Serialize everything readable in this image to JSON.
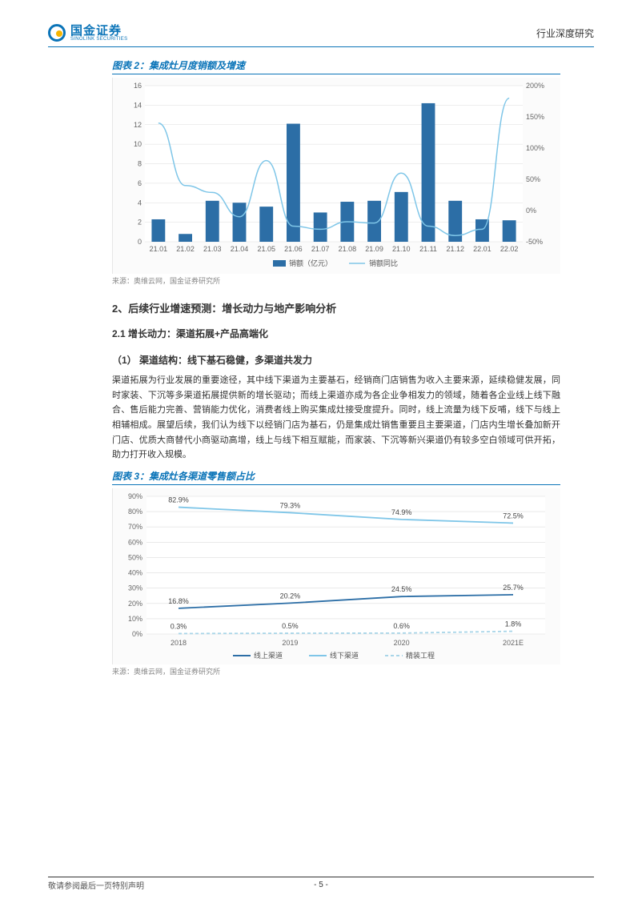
{
  "header": {
    "logo_cn": "国金证券",
    "logo_en": "SINOLINK SECURITIES",
    "right_text": "行业深度研究"
  },
  "fig2": {
    "title": "图表 2：集成灶月度销额及增速",
    "source": "来源：奥维云网，国金证券研究所",
    "type": "bar+line",
    "background_color": "#fbfbfb",
    "plot_bg": "#ffffff",
    "categories": [
      "21.01",
      "21.02",
      "21.03",
      "21.04",
      "21.05",
      "21.06",
      "21.07",
      "21.08",
      "21.09",
      "21.10",
      "21.11",
      "21.12",
      "22.01",
      "22.02"
    ],
    "bar_values": [
      2.3,
      0.8,
      4.2,
      4.0,
      3.6,
      12.1,
      3.0,
      4.1,
      4.2,
      5.1,
      14.2,
      4.2,
      2.3,
      2.2
    ],
    "line_values": [
      140,
      40,
      29,
      -10,
      80,
      -25,
      -30,
      -18,
      -20,
      60,
      -25,
      -40,
      -30,
      180
    ],
    "bar_color": "#2c6ea6",
    "line_color": "#7fc6e8",
    "grid_color": "#dcdcdc",
    "axis_font": 9,
    "y1_ticks": [
      0,
      2,
      4,
      6,
      8,
      10,
      12,
      14,
      16
    ],
    "y2_ticks": [
      -50,
      0,
      50,
      100,
      150,
      200
    ],
    "y2_tick_labels": [
      "-50%",
      "0%",
      "50%",
      "100%",
      "150%",
      "200%"
    ],
    "legend_bar": "销额（亿元）",
    "legend_line": "销额同比"
  },
  "section2_title": "2、后续行业增速预测：增长动力与地产影响分析",
  "sub21_title": "2.1 增长动力：渠道拓展+产品高端化",
  "para1_title": "（1）  渠道结构：线下基石稳健，多渠道共发力",
  "body1": "渠道拓展为行业发展的重要途径，其中线下渠道为主要基石，经销商门店销售为收入主要来源，延续稳健发展，同时家装、下沉等多渠道拓展提供新的增长驱动；而线上渠道亦成为各企业争相发力的领域，随着各企业线上线下融合、售后能力完善、营销能力优化，消费者线上购买集成灶接受度提升。同时，线上流量为线下反哺，线下与线上相辅相成。展望后续，我们认为线下以经销门店为基石，仍是集成灶销售重要且主要渠道，门店内生增长叠加新开门店、优质大商替代小商驱动高增，线上与线下相互赋能，而家装、下沉等新兴渠道仍有较多空白领域可供开拓，助力打开收入规模。",
  "fig3": {
    "title": "图表 3：集成灶各渠道零售额占比",
    "source": "来源：奥维云网，国金证券研究所",
    "type": "line",
    "background_color": "#fbfbfb",
    "plot_bg": "#ffffff",
    "categories": [
      "2018",
      "2019",
      "2020",
      "2021E"
    ],
    "series": [
      {
        "name": "线上渠道",
        "color": "#2c6ea6",
        "values": [
          16.8,
          20.2,
          24.5,
          25.7
        ],
        "labels": [
          "16.8%",
          "20.2%",
          "24.5%",
          "25.7%"
        ]
      },
      {
        "name": "线下渠道",
        "color": "#7fc6e8",
        "values": [
          82.9,
          79.3,
          74.9,
          72.5
        ],
        "labels": [
          "82.9%",
          "79.3%",
          "74.9%",
          "72.5%"
        ]
      },
      {
        "name": "精装工程",
        "color": "#a8d5e8",
        "dash": "4,3",
        "values": [
          0.3,
          0.5,
          0.6,
          1.8
        ],
        "labels": [
          "0.3%",
          "0.5%",
          "0.6%",
          "1.8%"
        ]
      }
    ],
    "y_ticks": [
      0,
      10,
      20,
      30,
      40,
      50,
      60,
      70,
      80,
      90
    ],
    "y_tick_labels": [
      "0%",
      "10%",
      "20%",
      "30%",
      "40%",
      "50%",
      "60%",
      "70%",
      "80%",
      "90%"
    ],
    "grid_color": "#dcdcdc",
    "axis_font": 9
  },
  "footer": {
    "page": "- 5 -",
    "note": "敬请参阅最后一页特别声明"
  }
}
